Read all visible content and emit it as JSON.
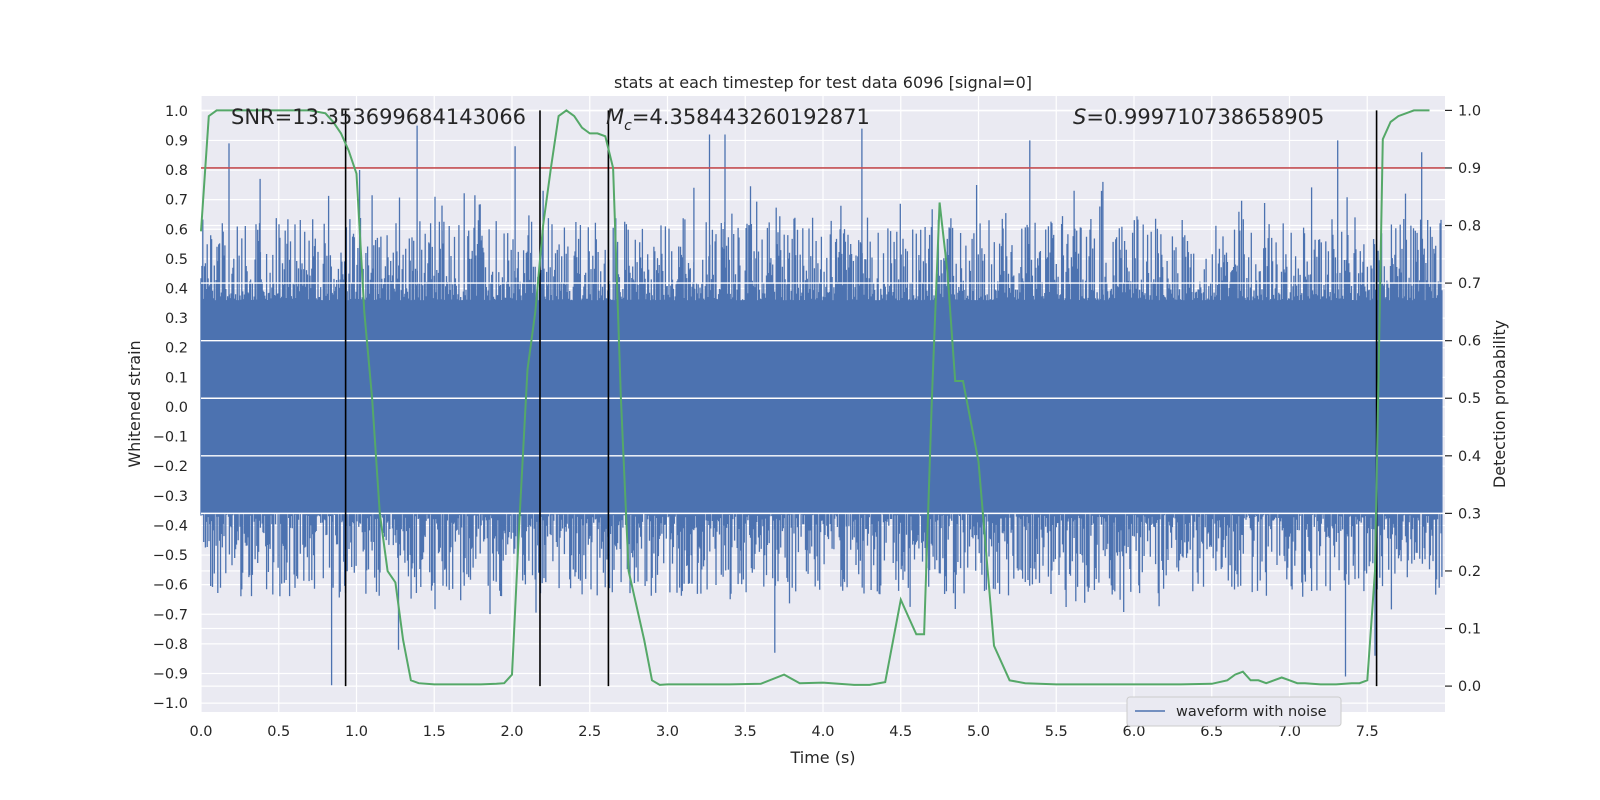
{
  "chart_data": {
    "type": "line",
    "title": "stats at each timestep for test data 6096 [signal=0]",
    "xlabel": "Time (s)",
    "ylabel": "Whitened strain",
    "ylabel_right": "Detection probability",
    "xlim": [
      0.0,
      8.0
    ],
    "ylim": [
      -1.03,
      1.05
    ],
    "ylim_right": [
      -0.045,
      1.025
    ],
    "x_ticks": [
      "0.0",
      "0.5",
      "1.0",
      "1.5",
      "2.0",
      "2.5",
      "3.0",
      "3.5",
      "4.0",
      "4.5",
      "5.0",
      "5.5",
      "6.0",
      "6.5",
      "7.0",
      "7.5"
    ],
    "y_ticks": [
      "1.0",
      "0.9",
      "0.8",
      "0.7",
      "0.6",
      "0.5",
      "0.4",
      "0.3",
      "0.2",
      "0.1",
      "0.0",
      "−0.1",
      "−0.2",
      "−0.3",
      "−0.4",
      "−0.5",
      "−0.6",
      "−0.7",
      "−0.8",
      "−0.9",
      "−1.0"
    ],
    "y_right_ticks": [
      "1.0",
      "0.9",
      "0.8",
      "0.7",
      "0.6",
      "0.5",
      "0.4",
      "0.3",
      "0.2",
      "0.1",
      "0.0"
    ],
    "grid": true,
    "legend": {
      "position": "bottom-right",
      "entries": [
        "waveform with noise"
      ]
    },
    "annotations": {
      "snr": "SNR=13.353699684143066",
      "mc_symbol": "M",
      "mc_sub": "c",
      "mc_value": "=4.358443260192871",
      "s_symbol": "S",
      "s_value": "=0.999710738658905"
    },
    "threshold_right": 0.9,
    "vertical_lines_x": [
      0.93,
      2.18,
      2.62,
      7.56
    ],
    "series": [
      {
        "name": "waveform with noise",
        "color": "#4c72b0",
        "style": "noise",
        "band": [
          -0.36,
          0.36
        ],
        "peaks": [
          [
            0.18,
            0.89
          ],
          [
            0.38,
            0.77
          ],
          [
            0.84,
            -0.94
          ],
          [
            1.02,
            0.8
          ],
          [
            1.27,
            -0.82
          ],
          [
            1.39,
            0.95
          ],
          [
            1.55,
            0.68
          ],
          [
            2.02,
            0.88
          ],
          [
            2.2,
            0.73
          ],
          [
            2.62,
            0.9
          ],
          [
            3.17,
            0.74
          ],
          [
            3.27,
            0.92
          ],
          [
            3.37,
            0.92
          ],
          [
            3.69,
            -0.83
          ],
          [
            4.25,
            0.94
          ],
          [
            5.33,
            0.9
          ],
          [
            5.8,
            0.76
          ],
          [
            7.31,
            0.9
          ],
          [
            7.36,
            -0.91
          ],
          [
            7.55,
            -0.84
          ],
          [
            7.85,
            0.86
          ]
        ]
      },
      {
        "name": "",
        "color": "#55a868",
        "axis": "right",
        "x": [
          0.0,
          0.05,
          0.1,
          0.2,
          0.3,
          0.4,
          0.5,
          0.6,
          0.7,
          0.8,
          0.85,
          0.9,
          0.95,
          1.0,
          1.05,
          1.1,
          1.15,
          1.2,
          1.25,
          1.3,
          1.35,
          1.4,
          1.5,
          1.6,
          1.7,
          1.8,
          1.9,
          1.95,
          2.0,
          2.05,
          2.1,
          2.15,
          2.2,
          2.25,
          2.3,
          2.35,
          2.4,
          2.45,
          2.5,
          2.55,
          2.6,
          2.65,
          2.7,
          2.75,
          2.8,
          2.85,
          2.9,
          2.95,
          3.0,
          3.2,
          3.4,
          3.6,
          3.75,
          3.85,
          4.0,
          4.1,
          4.2,
          4.3,
          4.4,
          4.5,
          4.55,
          4.6,
          4.65,
          4.7,
          4.75,
          4.8,
          4.85,
          4.9,
          5.0,
          5.1,
          5.2,
          5.3,
          5.5,
          5.8,
          6.0,
          6.3,
          6.5,
          6.6,
          6.65,
          6.7,
          6.75,
          6.8,
          6.85,
          6.9,
          6.95,
          7.0,
          7.05,
          7.1,
          7.2,
          7.3,
          7.4,
          7.45,
          7.5,
          7.55,
          7.6,
          7.65,
          7.7,
          7.8,
          7.9
        ],
        "values": [
          0.79,
          0.99,
          1.0,
          1.0,
          1.0,
          1.0,
          1.0,
          1.0,
          1.0,
          0.995,
          0.98,
          0.96,
          0.93,
          0.89,
          0.65,
          0.5,
          0.3,
          0.2,
          0.18,
          0.08,
          0.01,
          0.005,
          0.003,
          0.003,
          0.003,
          0.003,
          0.004,
          0.005,
          0.02,
          0.3,
          0.55,
          0.65,
          0.8,
          0.9,
          0.99,
          1.0,
          0.99,
          0.97,
          0.96,
          0.96,
          0.955,
          0.9,
          0.5,
          0.2,
          0.14,
          0.08,
          0.01,
          0.002,
          0.003,
          0.003,
          0.003,
          0.004,
          0.02,
          0.005,
          0.006,
          0.004,
          0.002,
          0.002,
          0.007,
          0.15,
          0.12,
          0.09,
          0.09,
          0.5,
          0.84,
          0.72,
          0.53,
          0.53,
          0.39,
          0.07,
          0.01,
          0.005,
          0.003,
          0.003,
          0.003,
          0.003,
          0.004,
          0.01,
          0.02,
          0.025,
          0.01,
          0.01,
          0.005,
          0.01,
          0.015,
          0.01,
          0.005,
          0.005,
          0.003,
          0.003,
          0.005,
          0.005,
          0.01,
          0.2,
          0.95,
          0.98,
          0.99,
          1.0,
          1.0
        ]
      }
    ],
    "colors": {
      "plot_bg": "#eaeaf2",
      "grid": "#ffffff",
      "threshold": "#c44e52",
      "vline": "#000000"
    }
  }
}
